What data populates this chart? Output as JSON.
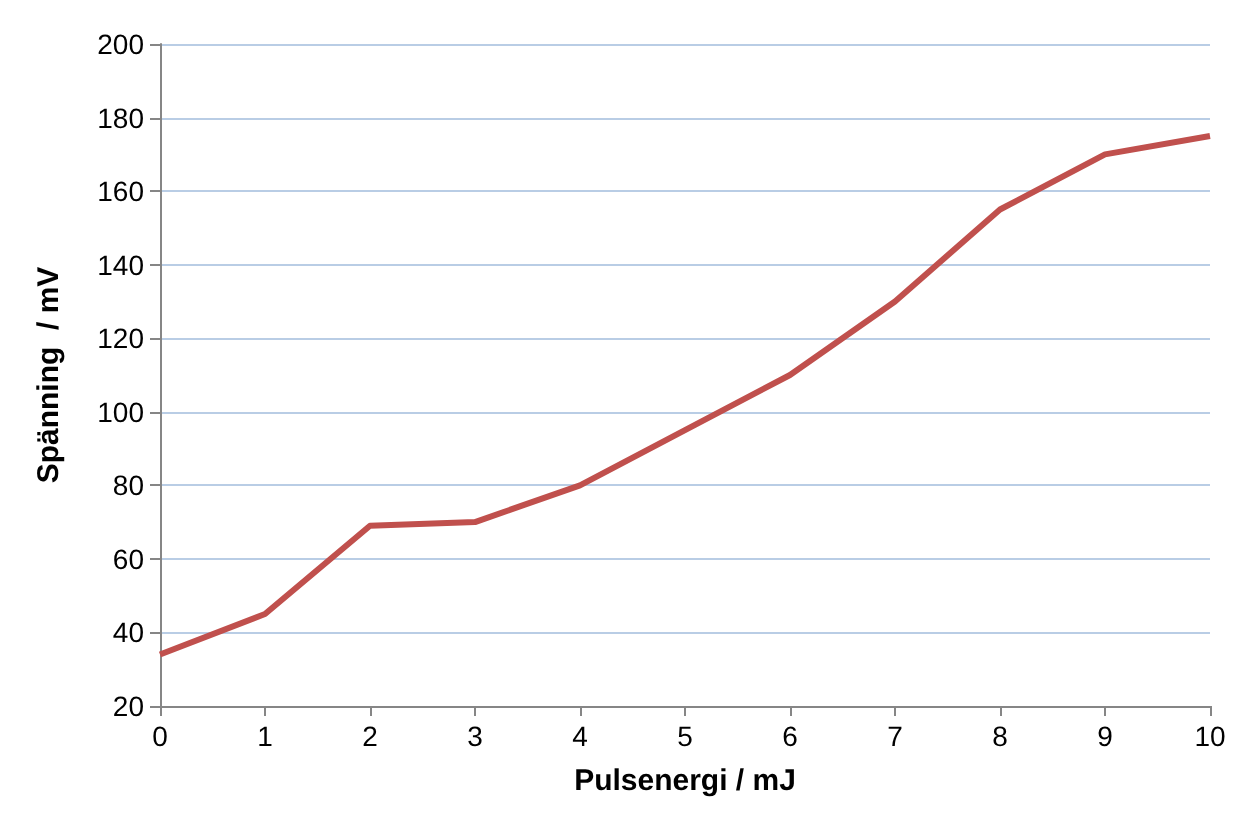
{
  "chart_data": {
    "type": "line",
    "xlabel": "Pulsenergi / mJ",
    "ylabel": "Spänning  / mV",
    "x": [
      0,
      1,
      2,
      3,
      4,
      5,
      6,
      7,
      8,
      9,
      10
    ],
    "series": [
      {
        "color": "#c0504d",
        "values": [
          34,
          45,
          69,
          70,
          80,
          95,
          110,
          130,
          155,
          170,
          175
        ]
      }
    ],
    "xlim": [
      0,
      10
    ],
    "xticks": [
      0,
      1,
      2,
      3,
      4,
      5,
      6,
      7,
      8,
      9,
      10
    ],
    "ylim": [
      20,
      200
    ],
    "yticks": [
      20,
      40,
      60,
      80,
      100,
      120,
      140,
      160,
      180,
      200
    ],
    "grid": "y",
    "marker": "none",
    "line_style": "solid"
  }
}
